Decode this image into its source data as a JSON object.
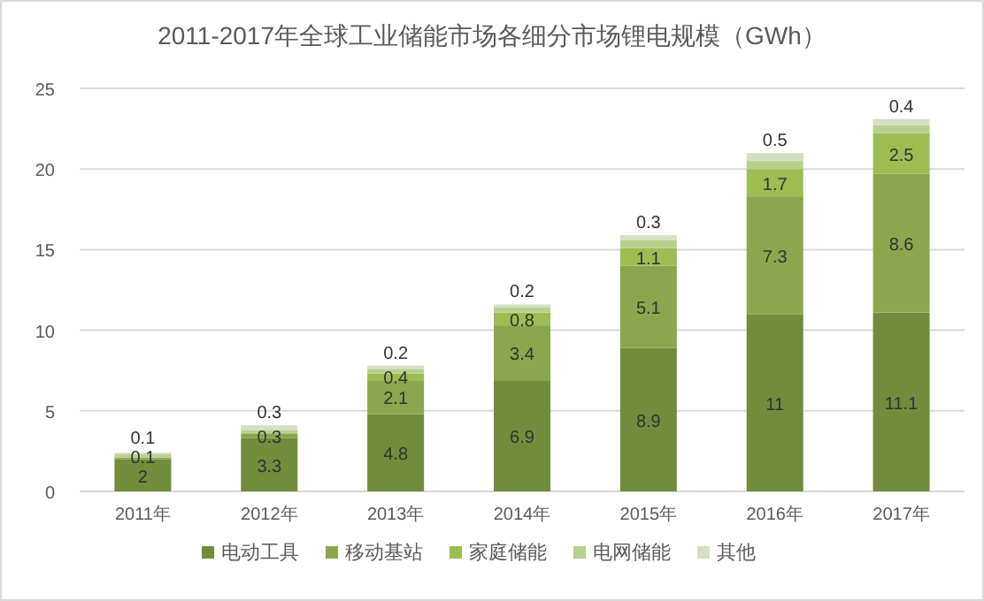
{
  "chart_data": {
    "type": "bar",
    "title": "2011-2017年全球工业储能市场各细分市场锂电规模（GWh）",
    "stacked": true,
    "categories": [
      "2011年",
      "2012年",
      "2013年",
      "2014年",
      "2015年",
      "2016年",
      "2017年"
    ],
    "series": [
      {
        "name": "电动工具",
        "color": "#728c3e",
        "values": [
          2,
          3.3,
          4.8,
          6.9,
          8.9,
          11,
          11.1
        ],
        "value_labels": [
          "2",
          "3.3",
          "4.8",
          "6.9",
          "8.9",
          "11",
          "11.1"
        ]
      },
      {
        "name": "移动基站",
        "color": "#8ba64c",
        "values": [
          0.1,
          0.3,
          2.1,
          3.4,
          5.1,
          7.3,
          8.6
        ],
        "value_labels": [
          "0.1",
          "0.3",
          "2.1",
          "3.4",
          "5.1",
          "7.3",
          "8.6"
        ]
      },
      {
        "name": "家庭储能",
        "color": "#9bbd52",
        "values": [
          null,
          null,
          0.4,
          0.8,
          1.1,
          1.7,
          2.5
        ],
        "value_labels": [
          null,
          null,
          "0.4",
          "0.8",
          "1.1",
          "1.7",
          "2.5"
        ]
      },
      {
        "name": "电网储能",
        "color": "#b7d08f",
        "values": [
          0.2,
          0.2,
          0.3,
          0.3,
          0.5,
          0.5,
          0.5
        ]
      },
      {
        "name": "其他",
        "color": "#d3e0c2",
        "values": [
          0.1,
          0.3,
          0.2,
          0.2,
          0.3,
          0.5,
          0.4
        ],
        "value_labels": [
          "0.1",
          "0.3",
          "0.2",
          "0.2",
          "0.3",
          "0.5",
          "0.4"
        ]
      }
    ],
    "ylim": [
      0,
      25
    ],
    "yticks": [
      0,
      5,
      10,
      15,
      20,
      25
    ],
    "grid": "y",
    "legend": "bottom"
  }
}
